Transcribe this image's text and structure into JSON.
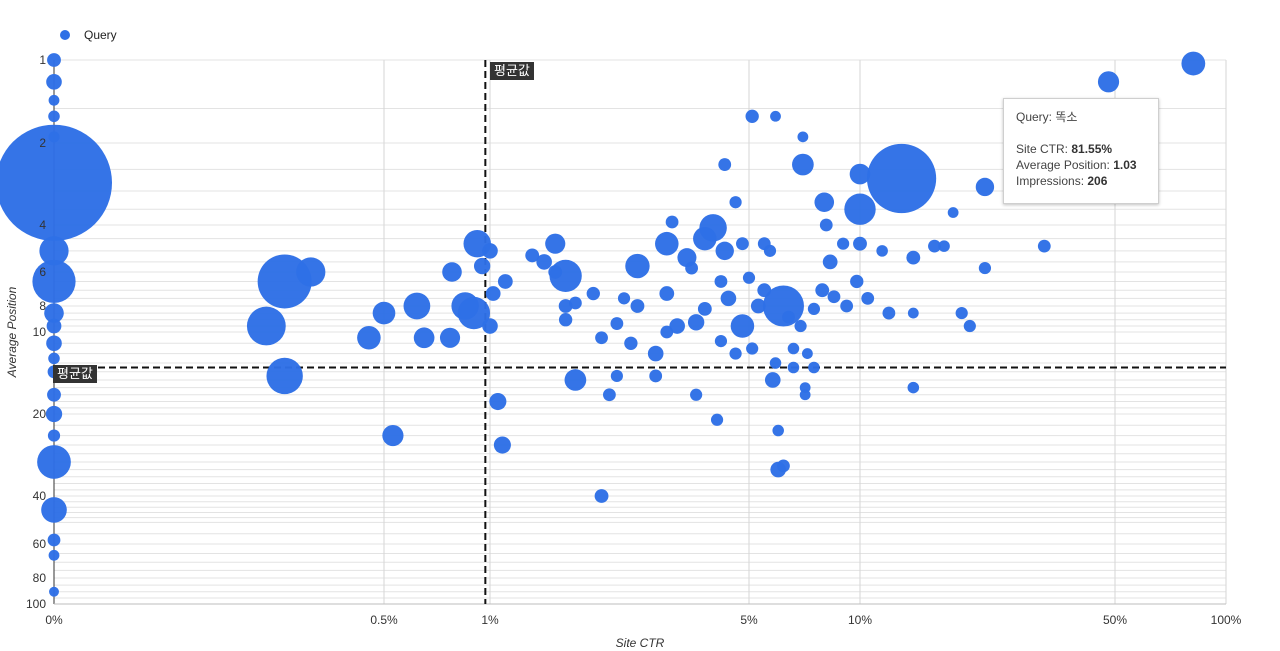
{
  "legend": {
    "label": "Query",
    "color": "#2e6fe6"
  },
  "tooltip": {
    "query_label": "Query:",
    "query_value": "똑소",
    "ctr_label": "Site CTR:",
    "ctr_value": "81.55%",
    "pos_label": "Average Position:",
    "pos_value": "1.03",
    "imp_label": "Impressions:",
    "imp_value": "206"
  },
  "avg_line_labels": {
    "vertical": "평균값",
    "horizontal": "평균값"
  },
  "chart_data": {
    "type": "scatter",
    "title": "",
    "xlabel": "Site CTR",
    "ylabel": "Average Position",
    "x_scale": "log",
    "y_scale": "log",
    "x_ticks": [
      "0%",
      "0.5%",
      "1%",
      "5%",
      "10%",
      "50%",
      "100%"
    ],
    "y_ticks": [
      "1",
      "2",
      "4",
      "6",
      "8",
      "10",
      "20",
      "40",
      "60",
      "80",
      "100"
    ],
    "xlim": [
      0,
      100
    ],
    "ylim": [
      1,
      100
    ],
    "grid": true,
    "legend_position": "top-left",
    "color": "#2e6fe6",
    "average_lines": {
      "x": 0.97,
      "y": 13.5
    },
    "series": [
      {
        "name": "Query",
        "points": [
          {
            "x": 0,
            "y": 1,
            "size": 40
          },
          {
            "x": 0,
            "y": 1.2,
            "size": 60
          },
          {
            "x": 0,
            "y": 1.4,
            "size": 15
          },
          {
            "x": 0,
            "y": 1.6,
            "size": 20
          },
          {
            "x": 0,
            "y": 1.9,
            "size": 18
          },
          {
            "x": 0,
            "y": 2.8,
            "size": 9000
          },
          {
            "x": 0,
            "y": 5,
            "size": 350
          },
          {
            "x": 0,
            "y": 6.5,
            "size": 900
          },
          {
            "x": 0,
            "y": 8.5,
            "size": 120
          },
          {
            "x": 0,
            "y": 9.5,
            "size": 50
          },
          {
            "x": 0,
            "y": 11,
            "size": 60
          },
          {
            "x": 0,
            "y": 12.5,
            "size": 20
          },
          {
            "x": 0,
            "y": 14,
            "size": 30
          },
          {
            "x": 0,
            "y": 17,
            "size": 40
          },
          {
            "x": 0,
            "y": 20,
            "size": 70
          },
          {
            "x": 0,
            "y": 24,
            "size": 25
          },
          {
            "x": 0,
            "y": 30,
            "size": 500
          },
          {
            "x": 0,
            "y": 45,
            "size": 250
          },
          {
            "x": 0,
            "y": 58,
            "size": 30
          },
          {
            "x": 0,
            "y": 66,
            "size": 15
          },
          {
            "x": 0,
            "y": 90,
            "size": 10
          },
          {
            "x": 0.25,
            "y": 6.5,
            "size": 1500
          },
          {
            "x": 0.3,
            "y": 6,
            "size": 350
          },
          {
            "x": 0.22,
            "y": 9.5,
            "size": 700
          },
          {
            "x": 0.25,
            "y": 14.5,
            "size": 600
          },
          {
            "x": 0.45,
            "y": 10.5,
            "size": 200
          },
          {
            "x": 0.5,
            "y": 8.5,
            "size": 180
          },
          {
            "x": 0.53,
            "y": 24,
            "size": 150
          },
          {
            "x": 0.62,
            "y": 8,
            "size": 280
          },
          {
            "x": 0.65,
            "y": 10.5,
            "size": 140
          },
          {
            "x": 0.77,
            "y": 10.5,
            "size": 130
          },
          {
            "x": 0.78,
            "y": 6,
            "size": 120
          },
          {
            "x": 0.85,
            "y": 8,
            "size": 300
          },
          {
            "x": 0.9,
            "y": 8.5,
            "size": 450
          },
          {
            "x": 0.92,
            "y": 4.7,
            "size": 300
          },
          {
            "x": 0.95,
            "y": 5.7,
            "size": 70
          },
          {
            "x": 1.0,
            "y": 5,
            "size": 60
          },
          {
            "x": 1.02,
            "y": 7.2,
            "size": 50
          },
          {
            "x": 1.0,
            "y": 9.5,
            "size": 60
          },
          {
            "x": 1.05,
            "y": 18,
            "size": 80
          },
          {
            "x": 1.08,
            "y": 26,
            "size": 80
          },
          {
            "x": 1.1,
            "y": 6.5,
            "size": 50
          },
          {
            "x": 1.3,
            "y": 5.2,
            "size": 40
          },
          {
            "x": 1.4,
            "y": 5.5,
            "size": 60
          },
          {
            "x": 1.5,
            "y": 4.7,
            "size": 130
          },
          {
            "x": 1.5,
            "y": 6,
            "size": 40
          },
          {
            "x": 1.6,
            "y": 6.2,
            "size": 450
          },
          {
            "x": 1.6,
            "y": 8,
            "size": 40
          },
          {
            "x": 1.6,
            "y": 9,
            "size": 35
          },
          {
            "x": 1.7,
            "y": 15,
            "size": 160
          },
          {
            "x": 1.7,
            "y": 7.8,
            "size": 30
          },
          {
            "x": 1.9,
            "y": 7.2,
            "size": 35
          },
          {
            "x": 2.0,
            "y": 10.5,
            "size": 30
          },
          {
            "x": 2.0,
            "y": 40,
            "size": 40
          },
          {
            "x": 2.1,
            "y": 17,
            "size": 30
          },
          {
            "x": 2.2,
            "y": 14.5,
            "size": 25
          },
          {
            "x": 2.2,
            "y": 9.3,
            "size": 30
          },
          {
            "x": 2.3,
            "y": 7.5,
            "size": 25
          },
          {
            "x": 2.4,
            "y": 11,
            "size": 35
          },
          {
            "x": 2.5,
            "y": 5.7,
            "size": 220
          },
          {
            "x": 2.5,
            "y": 8,
            "size": 40
          },
          {
            "x": 2.8,
            "y": 12,
            "size": 60
          },
          {
            "x": 2.8,
            "y": 14.5,
            "size": 30
          },
          {
            "x": 3.0,
            "y": 10,
            "size": 30
          },
          {
            "x": 3.0,
            "y": 7.2,
            "size": 50
          },
          {
            "x": 3.0,
            "y": 4.7,
            "size": 200
          },
          {
            "x": 3.1,
            "y": 3.9,
            "size": 30
          },
          {
            "x": 3.2,
            "y": 9.5,
            "size": 60
          },
          {
            "x": 3.4,
            "y": 5.3,
            "size": 110
          },
          {
            "x": 3.5,
            "y": 5.8,
            "size": 30
          },
          {
            "x": 3.6,
            "y": 9.2,
            "size": 70
          },
          {
            "x": 3.6,
            "y": 17,
            "size": 25
          },
          {
            "x": 3.8,
            "y": 8.2,
            "size": 40
          },
          {
            "x": 3.8,
            "y": 4.5,
            "size": 200
          },
          {
            "x": 4.0,
            "y": 4.1,
            "size": 300
          },
          {
            "x": 4.1,
            "y": 21,
            "size": 25
          },
          {
            "x": 4.2,
            "y": 10.8,
            "size": 25
          },
          {
            "x": 4.2,
            "y": 6.5,
            "size": 30
          },
          {
            "x": 4.3,
            "y": 5,
            "size": 100
          },
          {
            "x": 4.3,
            "y": 2.4,
            "size": 30
          },
          {
            "x": 4.4,
            "y": 7.5,
            "size": 60
          },
          {
            "x": 4.6,
            "y": 3.3,
            "size": 25
          },
          {
            "x": 4.6,
            "y": 12,
            "size": 25
          },
          {
            "x": 4.8,
            "y": 4.7,
            "size": 30
          },
          {
            "x": 4.8,
            "y": 9.5,
            "size": 200
          },
          {
            "x": 5.0,
            "y": 6.3,
            "size": 25
          },
          {
            "x": 5.1,
            "y": 1.6,
            "size": 35
          },
          {
            "x": 5.1,
            "y": 11.5,
            "size": 25
          },
          {
            "x": 5.3,
            "y": 8,
            "size": 50
          },
          {
            "x": 5.5,
            "y": 4.7,
            "size": 30
          },
          {
            "x": 5.5,
            "y": 7,
            "size": 40
          },
          {
            "x": 5.7,
            "y": 5,
            "size": 25
          },
          {
            "x": 5.8,
            "y": 15,
            "size": 60
          },
          {
            "x": 5.9,
            "y": 13,
            "size": 20
          },
          {
            "x": 5.9,
            "y": 1.6,
            "size": 15
          },
          {
            "x": 6.0,
            "y": 23,
            "size": 20
          },
          {
            "x": 6.0,
            "y": 32,
            "size": 60
          },
          {
            "x": 6.2,
            "y": 31,
            "size": 30
          },
          {
            "x": 6.2,
            "y": 8,
            "size": 800
          },
          {
            "x": 6.4,
            "y": 8.8,
            "size": 30
          },
          {
            "x": 6.6,
            "y": 11.5,
            "size": 20
          },
          {
            "x": 6.6,
            "y": 13.5,
            "size": 20
          },
          {
            "x": 6.9,
            "y": 9.5,
            "size": 25
          },
          {
            "x": 7.0,
            "y": 1.9,
            "size": 15
          },
          {
            "x": 7.0,
            "y": 2.4,
            "size": 160
          },
          {
            "x": 7.1,
            "y": 16,
            "size": 15
          },
          {
            "x": 7.1,
            "y": 17,
            "size": 15
          },
          {
            "x": 7.2,
            "y": 12,
            "size": 15
          },
          {
            "x": 7.5,
            "y": 8.2,
            "size": 25
          },
          {
            "x": 7.5,
            "y": 13.5,
            "size": 20
          },
          {
            "x": 7.9,
            "y": 7,
            "size": 40
          },
          {
            "x": 8.0,
            "y": 3.3,
            "size": 120
          },
          {
            "x": 8.1,
            "y": 4.0,
            "size": 30
          },
          {
            "x": 8.3,
            "y": 5.5,
            "size": 50
          },
          {
            "x": 8.5,
            "y": 7.4,
            "size": 30
          },
          {
            "x": 9.0,
            "y": 4.7,
            "size": 25
          },
          {
            "x": 9.2,
            "y": 8,
            "size": 30
          },
          {
            "x": 9.8,
            "y": 6.5,
            "size": 35
          },
          {
            "x": 10,
            "y": 3.5,
            "size": 420
          },
          {
            "x": 10,
            "y": 2.6,
            "size": 140
          },
          {
            "x": 10,
            "y": 4.7,
            "size": 40
          },
          {
            "x": 10.5,
            "y": 7.5,
            "size": 30
          },
          {
            "x": 11.5,
            "y": 5,
            "size": 20
          },
          {
            "x": 12,
            "y": 8.5,
            "size": 30
          },
          {
            "x": 13,
            "y": 2.7,
            "size": 2600
          },
          {
            "x": 14,
            "y": 5.3,
            "size": 40
          },
          {
            "x": 14,
            "y": 8.5,
            "size": 15
          },
          {
            "x": 14,
            "y": 16,
            "size": 20
          },
          {
            "x": 16,
            "y": 4.8,
            "size": 30
          },
          {
            "x": 17,
            "y": 4.8,
            "size": 20
          },
          {
            "x": 18,
            "y": 3.6,
            "size": 15
          },
          {
            "x": 19,
            "y": 8.5,
            "size": 25
          },
          {
            "x": 20,
            "y": 9.5,
            "size": 25
          },
          {
            "x": 22,
            "y": 2.9,
            "size": 100
          },
          {
            "x": 22,
            "y": 5.8,
            "size": 25
          },
          {
            "x": 32,
            "y": 4.8,
            "size": 30
          },
          {
            "x": 48,
            "y": 1.2,
            "size": 150
          },
          {
            "x": 81.55,
            "y": 1.03,
            "size": 206
          }
        ]
      }
    ]
  }
}
